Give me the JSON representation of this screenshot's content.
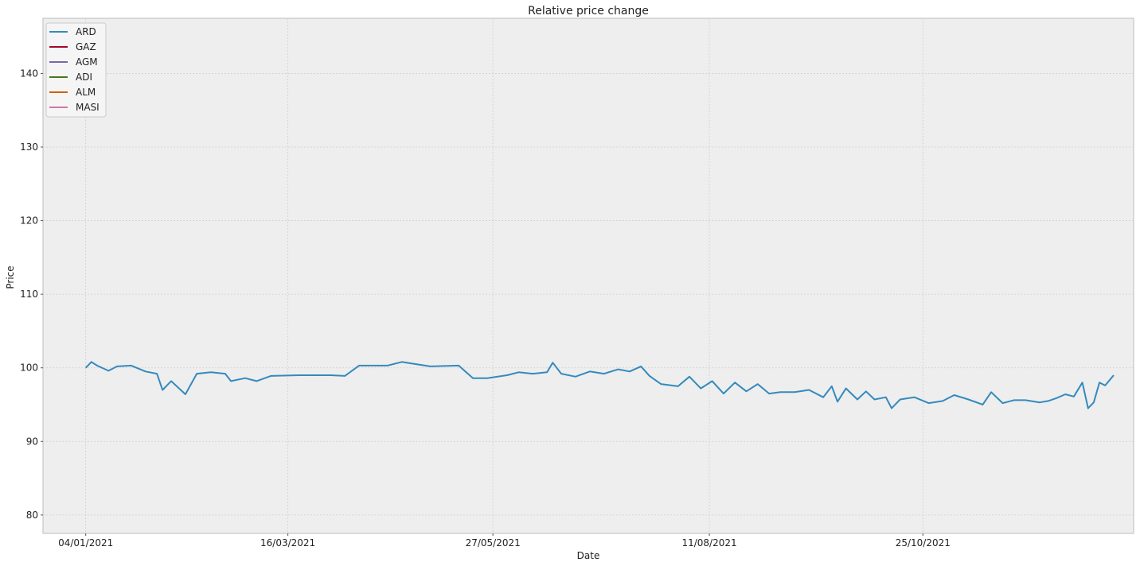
{
  "chart_data": {
    "type": "line",
    "title": "Relative price change",
    "xlabel": "Date",
    "ylabel": "Price",
    "x_range": [
      "2020-12-20",
      "2022-01-07"
    ],
    "ylim": [
      77.5,
      147.5
    ],
    "x_ticks": [
      "04/01/2021",
      "16/03/2021",
      "27/05/2021",
      "11/08/2021",
      "25/10/2021"
    ],
    "y_ticks": [
      80,
      90,
      100,
      110,
      120,
      130,
      140
    ],
    "grid": true,
    "legend_position": "top-left",
    "series": [
      {
        "name": "ARD",
        "color": "#348ABD",
        "points": [
          [
            "2021-01-04",
            100.0
          ],
          [
            "2021-01-06",
            100.8
          ],
          [
            "2021-01-08",
            100.3
          ],
          [
            "2021-01-12",
            99.6
          ],
          [
            "2021-01-15",
            100.2
          ],
          [
            "2021-01-20",
            100.3
          ],
          [
            "2021-01-25",
            99.5
          ],
          [
            "2021-01-29",
            99.2
          ],
          [
            "2021-01-31",
            97.0
          ],
          [
            "2021-02-03",
            98.2
          ],
          [
            "2021-02-08",
            96.4
          ],
          [
            "2021-02-12",
            99.2
          ],
          [
            "2021-02-17",
            99.4
          ],
          [
            "2021-02-22",
            99.2
          ],
          [
            "2021-02-24",
            98.2
          ],
          [
            "2021-03-01",
            98.6
          ],
          [
            "2021-03-05",
            98.2
          ],
          [
            "2021-03-10",
            98.9
          ],
          [
            "2021-03-20",
            99.0
          ],
          [
            "2021-03-31",
            99.0
          ],
          [
            "2021-04-05",
            98.9
          ],
          [
            "2021-04-10",
            100.3
          ],
          [
            "2021-04-20",
            100.3
          ],
          [
            "2021-04-25",
            100.8
          ],
          [
            "2021-05-05",
            100.2
          ],
          [
            "2021-05-15",
            100.3
          ],
          [
            "2021-05-20",
            98.6
          ],
          [
            "2021-05-25",
            98.6
          ],
          [
            "2021-06-01",
            99.0
          ],
          [
            "2021-06-05",
            99.4
          ],
          [
            "2021-06-10",
            99.2
          ],
          [
            "2021-06-15",
            99.4
          ],
          [
            "2021-06-17",
            100.7
          ],
          [
            "2021-06-20",
            99.2
          ],
          [
            "2021-06-25",
            98.8
          ],
          [
            "2021-06-30",
            99.5
          ],
          [
            "2021-07-05",
            99.2
          ],
          [
            "2021-07-10",
            99.8
          ],
          [
            "2021-07-14",
            99.5
          ],
          [
            "2021-07-18",
            100.2
          ],
          [
            "2021-07-21",
            98.9
          ],
          [
            "2021-07-25",
            97.8
          ],
          [
            "2021-07-31",
            97.5
          ],
          [
            "2021-08-04",
            98.8
          ],
          [
            "2021-08-08",
            97.2
          ],
          [
            "2021-08-12",
            98.2
          ],
          [
            "2021-08-16",
            96.5
          ],
          [
            "2021-08-20",
            98.0
          ],
          [
            "2021-08-24",
            96.8
          ],
          [
            "2021-08-28",
            97.8
          ],
          [
            "2021-09-01",
            96.5
          ],
          [
            "2021-09-05",
            96.7
          ],
          [
            "2021-09-10",
            96.7
          ],
          [
            "2021-09-15",
            97.0
          ],
          [
            "2021-09-20",
            96.0
          ],
          [
            "2021-09-23",
            97.5
          ],
          [
            "2021-09-25",
            95.4
          ],
          [
            "2021-09-28",
            97.2
          ],
          [
            "2021-10-02",
            95.7
          ],
          [
            "2021-10-05",
            96.8
          ],
          [
            "2021-10-08",
            95.7
          ],
          [
            "2021-10-12",
            96.0
          ],
          [
            "2021-10-14",
            94.5
          ],
          [
            "2021-10-17",
            95.7
          ],
          [
            "2021-10-22",
            96.0
          ],
          [
            "2021-10-27",
            95.2
          ],
          [
            "2021-11-01",
            95.5
          ],
          [
            "2021-11-05",
            96.3
          ],
          [
            "2021-11-10",
            95.7
          ],
          [
            "2021-11-15",
            95.0
          ],
          [
            "2021-11-18",
            96.7
          ],
          [
            "2021-11-22",
            95.2
          ],
          [
            "2021-11-26",
            95.6
          ],
          [
            "2021-11-30",
            95.6
          ],
          [
            "2021-12-05",
            95.3
          ],
          [
            "2021-12-08",
            95.5
          ],
          [
            "2021-12-11",
            95.9
          ],
          [
            "2021-12-14",
            96.4
          ],
          [
            "2021-12-17",
            96.1
          ],
          [
            "2021-12-20",
            98.0
          ],
          [
            "2021-12-22",
            94.5
          ],
          [
            "2021-12-24",
            95.3
          ],
          [
            "2021-12-26",
            98.0
          ],
          [
            "2021-12-28",
            97.6
          ],
          [
            "2021-12-31",
            99.0
          ],
          [
            "2021-10-08",
            95.7
          ]
        ]
      },
      {
        "name": "GAZ",
        "color": "#A60628",
        "points": []
      },
      {
        "name": "AGM",
        "color": "#7A68A6",
        "points": []
      },
      {
        "name": "ADI",
        "color": "#467821",
        "points": []
      },
      {
        "name": "ALM",
        "color": "#D55E00",
        "points": []
      },
      {
        "name": "MASI",
        "color": "#CC79A7",
        "points": []
      }
    ]
  }
}
